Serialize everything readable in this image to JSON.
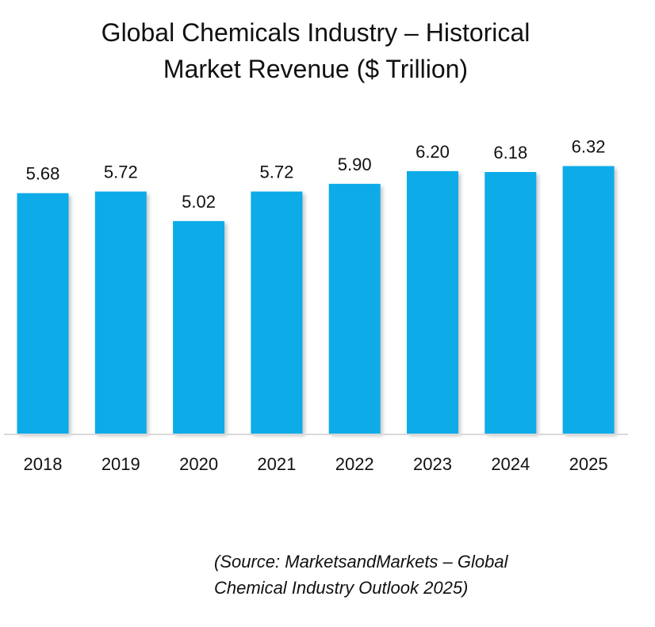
{
  "title_lines": [
    "Global Chemicals Industry – Historical",
    "Market Revenue ($ Trillion)"
  ],
  "source_lines": [
    "(Source: MarketsandMarkets – Global",
    "Chemical Industry Outlook 2025)"
  ],
  "colors": {
    "bar": "#0EABE8",
    "baseline": "#D9D9D9",
    "text": "#111111"
  },
  "chart_data": {
    "type": "bar",
    "title": "Global Chemicals Industry – Historical Market Revenue ($ Trillion)",
    "xlabel": "",
    "ylabel": "",
    "ylim": [
      0,
      6.75
    ],
    "grid": false,
    "categories": [
      "2018",
      "2019",
      "2020",
      "2021",
      "2022",
      "2023",
      "2024",
      "2025"
    ],
    "values": [
      5.68,
      5.72,
      5.02,
      5.72,
      5.9,
      6.2,
      6.18,
      6.32
    ],
    "value_labels": [
      "5.68",
      "5.72",
      "5.02",
      "5.72",
      "5.90",
      "6.20",
      "6.18",
      "6.32"
    ]
  }
}
